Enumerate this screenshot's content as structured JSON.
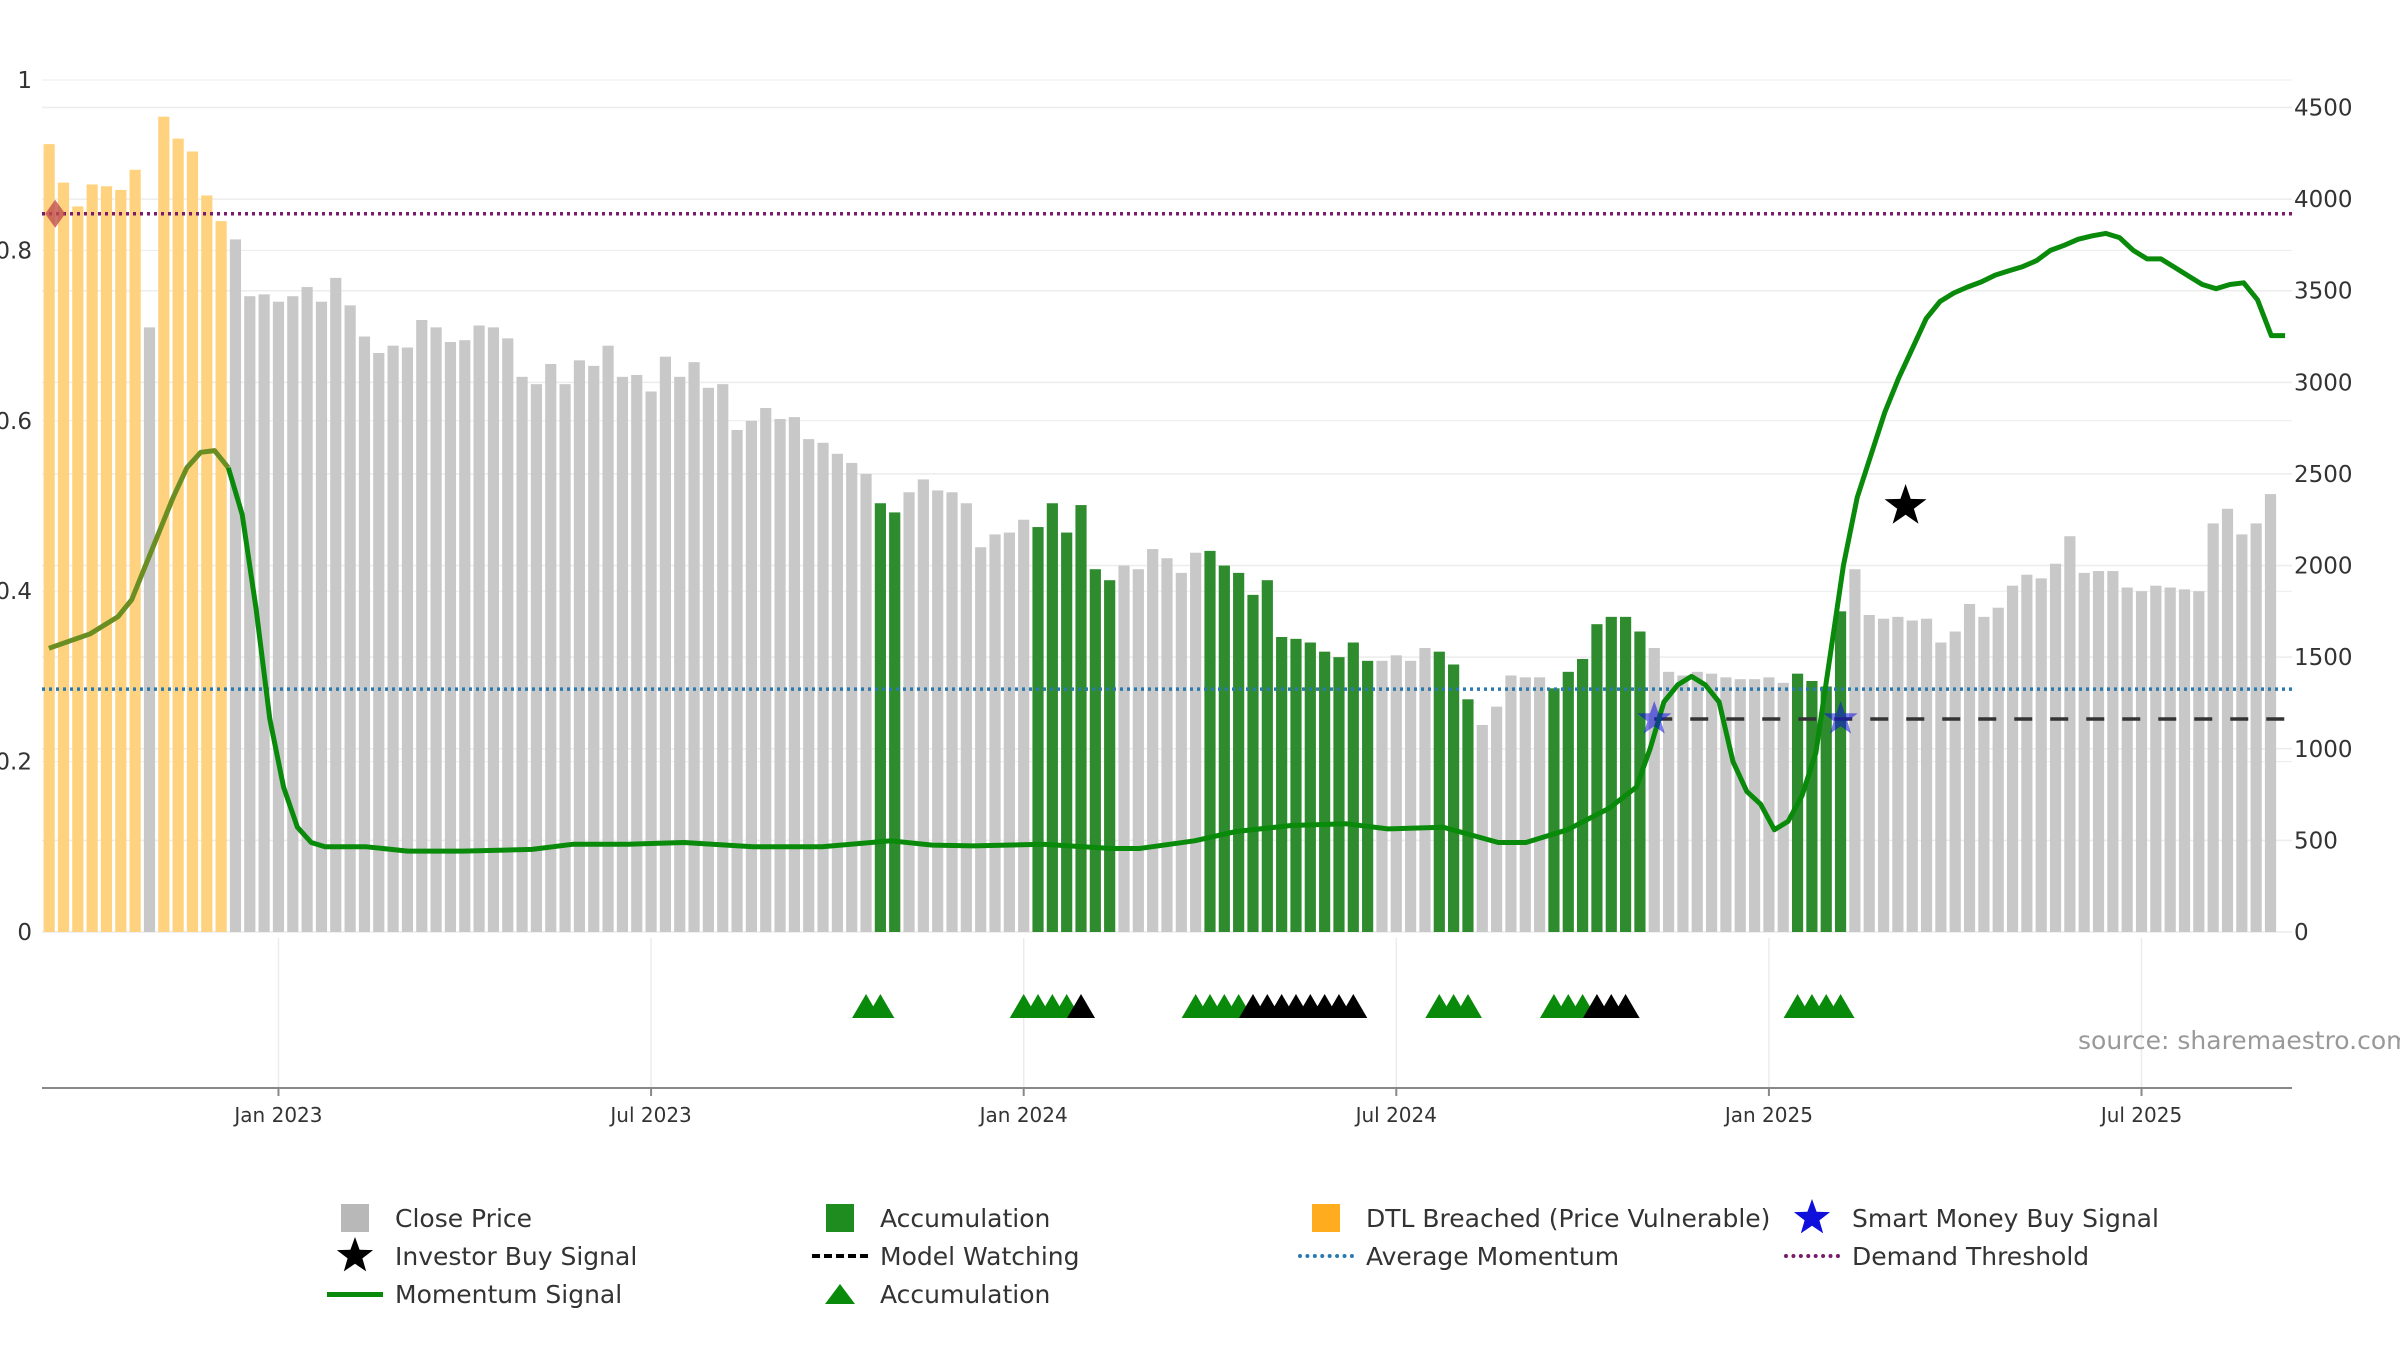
{
  "chart_data": {
    "type": "bar",
    "source_label": "source: sharemaestro.com",
    "left_axis": {
      "ylim": [
        0,
        1
      ],
      "ticks": [
        "0",
        "0.2",
        "0.4",
        "0.6",
        "0.8",
        "1"
      ]
    },
    "right_axis": {
      "ylim": [
        0,
        4650
      ],
      "ticks": [
        "0",
        "500",
        "1000",
        "1500",
        "2000",
        "2500",
        "3000",
        "3500",
        "4000",
        "4500"
      ]
    },
    "x_ticks": [
      {
        "label": "Jan 2023",
        "week": 16
      },
      {
        "label": "Jul 2023",
        "week": 42
      },
      {
        "label": "Jan 2024",
        "week": 68
      },
      {
        "label": "Jul 2024",
        "week": 94
      },
      {
        "label": "Jan 2025",
        "week": 120
      },
      {
        "label": "Jul 2025",
        "week": 146
      }
    ],
    "x_range_weeks": [
      -0.5,
      156.5
    ],
    "close_price": [
      4300,
      4090,
      3960,
      4080,
      4070,
      4050,
      4160,
      3300,
      4450,
      4330,
      4260,
      4020,
      3880,
      3780,
      3470,
      3480,
      3440,
      3470,
      3520,
      3440,
      3570,
      3420,
      3250,
      3160,
      3200,
      3190,
      3340,
      3300,
      3220,
      3230,
      3310,
      3300,
      3240,
      3030,
      2990,
      3100,
      2990,
      3120,
      3090,
      3200,
      3030,
      3040,
      2950,
      3140,
      3030,
      3110,
      2970,
      2990,
      2740,
      2790,
      2860,
      2800,
      2810,
      2690,
      2670,
      2610,
      2560,
      2500,
      2340,
      2290,
      2400,
      2470,
      2410,
      2400,
      2340,
      2100,
      2170,
      2180,
      2250,
      2210,
      2340,
      2180,
      2330,
      1980,
      1920,
      2000,
      1980,
      2090,
      2040,
      1960,
      2070,
      2080,
      2000,
      1960,
      1840,
      1920,
      1610,
      1600,
      1580,
      1530,
      1500,
      1580,
      1480,
      1480,
      1510,
      1480,
      1550,
      1530,
      1460,
      1270,
      1130,
      1230,
      1400,
      1390,
      1390,
      1330,
      1420,
      1490,
      1680,
      1720,
      1720,
      1640,
      1550,
      1420,
      1400,
      1420,
      1410,
      1390,
      1380,
      1380,
      1390,
      1360,
      1410,
      1370,
      1340,
      1750,
      1980,
      1730,
      1710,
      1720,
      1700,
      1710,
      1580,
      1640,
      1790,
      1720,
      1770,
      1890,
      1950,
      1930,
      2010,
      2160,
      1960,
      1970,
      1970,
      1880,
      1860,
      1890,
      1880,
      1870,
      1860,
      2230,
      2310,
      2170,
      2230,
      2390
    ],
    "accumulation_weeks": [
      [
        58,
        59
      ],
      [
        69,
        74
      ],
      [
        81,
        92
      ],
      [
        97,
        99
      ],
      [
        105,
        111
      ],
      [
        122,
        125
      ]
    ],
    "dtl_breached_weeks": [
      0,
      1,
      2,
      3,
      4,
      5,
      6,
      8,
      9,
      10,
      11,
      12
    ],
    "momentum_signal": [
      [
        0,
        0.333
      ],
      [
        3,
        0.35
      ],
      [
        5,
        0.37
      ],
      [
        6,
        0.39
      ],
      [
        7,
        0.43
      ],
      [
        8,
        0.47
      ],
      [
        9,
        0.51
      ],
      [
        10,
        0.545
      ],
      [
        11,
        0.563
      ],
      [
        12,
        0.565
      ],
      [
        13,
        0.545
      ],
      [
        14,
        0.49
      ],
      [
        15,
        0.38
      ],
      [
        16,
        0.25
      ],
      [
        17,
        0.17
      ],
      [
        18,
        0.123
      ],
      [
        19,
        0.105
      ],
      [
        20,
        0.1
      ],
      [
        23,
        0.1
      ],
      [
        26,
        0.095
      ],
      [
        30,
        0.095
      ],
      [
        35,
        0.097
      ],
      [
        38,
        0.103
      ],
      [
        42,
        0.103
      ],
      [
        46,
        0.105
      ],
      [
        51,
        0.1
      ],
      [
        56,
        0.1
      ],
      [
        61,
        0.107
      ],
      [
        64,
        0.102
      ],
      [
        67,
        0.101
      ],
      [
        72,
        0.103
      ],
      [
        77,
        0.098
      ],
      [
        79,
        0.098
      ],
      [
        83,
        0.107
      ],
      [
        86,
        0.118
      ],
      [
        90,
        0.125
      ],
      [
        94,
        0.127
      ],
      [
        97,
        0.121
      ],
      [
        101,
        0.123
      ],
      [
        105,
        0.105
      ],
      [
        107,
        0.105
      ],
      [
        110,
        0.12
      ],
      [
        113,
        0.145
      ],
      [
        115,
        0.17
      ],
      [
        116,
        0.215
      ],
      [
        117,
        0.27
      ],
      [
        118,
        0.29
      ],
      [
        119,
        0.3
      ],
      [
        120,
        0.29
      ],
      [
        121,
        0.27
      ],
      [
        122,
        0.2
      ],
      [
        123,
        0.165
      ],
      [
        124,
        0.15
      ],
      [
        125,
        0.12
      ],
      [
        126,
        0.13
      ],
      [
        127,
        0.16
      ],
      [
        128,
        0.21
      ],
      [
        129,
        0.32
      ],
      [
        130,
        0.43
      ],
      [
        131,
        0.51
      ],
      [
        132,
        0.56
      ],
      [
        133,
        0.61
      ],
      [
        134,
        0.65
      ],
      [
        135,
        0.685
      ],
      [
        136,
        0.72
      ],
      [
        137,
        0.74
      ],
      [
        138,
        0.75
      ],
      [
        139,
        0.757
      ],
      [
        140,
        0.763
      ],
      [
        141,
        0.771
      ],
      [
        142,
        0.776
      ],
      [
        143,
        0.781
      ],
      [
        144,
        0.788
      ],
      [
        145,
        0.8
      ],
      [
        146,
        0.806
      ],
      [
        147,
        0.813
      ],
      [
        148,
        0.817
      ],
      [
        149,
        0.82
      ],
      [
        150,
        0.815
      ],
      [
        151,
        0.8
      ],
      [
        152,
        0.79
      ],
      [
        153,
        0.79
      ],
      [
        154,
        0.78
      ],
      [
        155,
        0.77
      ],
      [
        156,
        0.76
      ],
      [
        157,
        0.755
      ],
      [
        158,
        0.76
      ],
      [
        159,
        0.762
      ],
      [
        160,
        0.742
      ],
      [
        161,
        0.7
      ],
      [
        162,
        0.7
      ]
    ],
    "momentum_signal_note_scale": "right_axis",
    "average_momentum": 0.285,
    "demand_threshold": 0.843,
    "model_watching_level": 0.25,
    "model_watching_from_week": 112,
    "smart_money_signals": [
      {
        "week": 112,
        "y": 0.25
      },
      {
        "week": 125,
        "y": 0.25
      }
    ],
    "investor_buy_signal": {
      "week": 128,
      "y": 0.5
    },
    "start_marker": {
      "week": 0,
      "y": 0.843
    },
    "accumulation_markers": [
      {
        "week": 57,
        "color": "green"
      },
      {
        "week": 58,
        "color": "green"
      },
      {
        "week": 68,
        "color": "green"
      },
      {
        "week": 69,
        "color": "green"
      },
      {
        "week": 70,
        "color": "green"
      },
      {
        "week": 71,
        "color": "green"
      },
      {
        "week": 72,
        "color": "black"
      },
      {
        "week": 80,
        "color": "green"
      },
      {
        "week": 81,
        "color": "green"
      },
      {
        "week": 82,
        "color": "green"
      },
      {
        "week": 83,
        "color": "green"
      },
      {
        "week": 84,
        "color": "black"
      },
      {
        "week": 85,
        "color": "black"
      },
      {
        "week": 86,
        "color": "black"
      },
      {
        "week": 87,
        "color": "black"
      },
      {
        "week": 88,
        "color": "black"
      },
      {
        "week": 89,
        "color": "black"
      },
      {
        "week": 90,
        "color": "black"
      },
      {
        "week": 91,
        "color": "black"
      },
      {
        "week": 97,
        "color": "green"
      },
      {
        "week": 98,
        "color": "green"
      },
      {
        "week": 99,
        "color": "green"
      },
      {
        "week": 105,
        "color": "green"
      },
      {
        "week": 106,
        "color": "green"
      },
      {
        "week": 107,
        "color": "green"
      },
      {
        "week": 108,
        "color": "black"
      },
      {
        "week": 109,
        "color": "black"
      },
      {
        "week": 110,
        "color": "black"
      },
      {
        "week": 122,
        "color": "green"
      },
      {
        "week": 123,
        "color": "green"
      },
      {
        "week": 124,
        "color": "green"
      },
      {
        "week": 125,
        "color": "green"
      }
    ],
    "colors": {
      "close": "#c8c8c8",
      "accumulation": "#2e8b2e",
      "dtl": "#ffd27f",
      "momentum": "#0a8a0a",
      "momentum_early": "#6b8e23",
      "avg": "#2a7ab0",
      "demand": "#7a1a6a",
      "smart": "#1010dd",
      "black": "#000000",
      "grid": "#ececec"
    }
  },
  "legend": {
    "close_price": "Close Price",
    "accumulation": "Accumulation",
    "dtl_breached": "DTL Breached (Price Vulnerable)",
    "smart_money": "Smart Money Buy Signal",
    "investor_buy": "Investor Buy Signal",
    "model_watching": "Model Watching",
    "average_momentum": "Average Momentum",
    "demand_threshold": "Demand Threshold",
    "momentum_signal": "Momentum Signal",
    "accumulation_marker": "Accumulation"
  }
}
